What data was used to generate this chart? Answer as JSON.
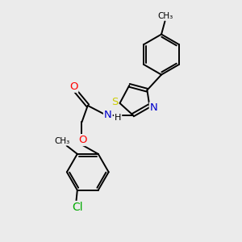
{
  "background_color": "#ebebeb",
  "bond_color": "#000000",
  "atom_colors": {
    "S": "#cccc00",
    "N": "#0000cc",
    "O": "#ff0000",
    "Cl": "#00aa00",
    "C": "#000000",
    "H": "#000000"
  },
  "font_size": 8.5,
  "bond_width": 1.4,
  "figsize": [
    3.0,
    3.0
  ],
  "dpi": 100
}
